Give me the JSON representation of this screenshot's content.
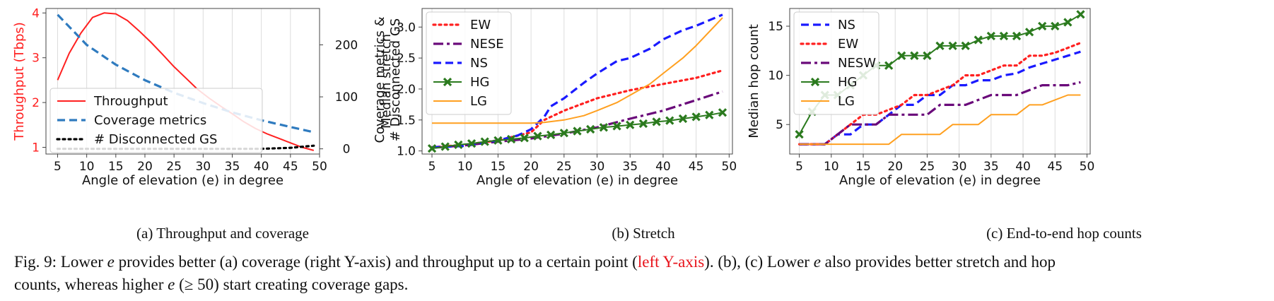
{
  "colors": {
    "red": "#ff2020",
    "steel_blue": "#2f7bbf",
    "blue": "#1a1aff",
    "purple": "#6a0a7a",
    "green": "#2b7a1e",
    "orange": "#ffa020",
    "black": "#000000",
    "left_axis_red": "#ff2020"
  },
  "chart_data": [
    {
      "id": "a",
      "type": "line",
      "xlabel": "Angle of elevation (e) in degree",
      "ylabel": "Throughput (Tbps)",
      "y2label_line1": "Coverage metrics &",
      "y2label_line2": "# Disconnected GS",
      "xlim": [
        3,
        50
      ],
      "ylim": [
        0.85,
        4.1
      ],
      "y2lim": [
        -10,
        270
      ],
      "xticks": [
        5,
        10,
        15,
        20,
        25,
        30,
        35,
        40,
        45,
        50
      ],
      "yticks": [
        1,
        2,
        3,
        4
      ],
      "y2ticks": [
        0,
        100,
        200
      ],
      "grid": "vertical",
      "legend_position": "lower-left",
      "series": [
        {
          "name": "Throughput",
          "axis": "left",
          "style": "solid",
          "color": "#ff2020",
          "x": [
            5,
            7,
            9,
            11,
            13,
            15,
            17,
            19,
            21,
            23,
            25,
            27,
            29,
            31,
            33,
            35,
            37,
            39,
            41,
            43,
            45,
            47,
            49
          ],
          "y": [
            2.5,
            3.1,
            3.55,
            3.9,
            4.0,
            3.98,
            3.83,
            3.6,
            3.35,
            3.08,
            2.8,
            2.55,
            2.3,
            2.1,
            1.92,
            1.75,
            1.57,
            1.42,
            1.3,
            1.2,
            1.1,
            1.0,
            0.93
          ]
        },
        {
          "name": "Coverage metrics",
          "axis": "right",
          "style": "dashed",
          "color": "#2f7bbf",
          "x": [
            5,
            10,
            15,
            20,
            25,
            30,
            35,
            40,
            45,
            49
          ],
          "y": [
            258,
            200,
            162,
            132,
            108,
            88,
            70,
            55,
            42,
            32
          ]
        },
        {
          "name": "# Disconnected GS",
          "axis": "right",
          "style": "dotted",
          "color": "#000000",
          "x": [
            5,
            10,
            15,
            20,
            25,
            30,
            35,
            40,
            45,
            49
          ],
          "y": [
            0,
            0,
            0,
            0,
            0,
            0,
            0,
            0,
            2,
            6
          ]
        }
      ],
      "subcaption": "(a) Throughput and coverage"
    },
    {
      "id": "b",
      "type": "line",
      "xlabel": "Angle of elevation (e) in degree",
      "ylabel": "Median stretch",
      "xlim": [
        3.5,
        50.5
      ],
      "ylim": [
        0.95,
        3.3
      ],
      "xticks": [
        5,
        10,
        15,
        20,
        25,
        30,
        35,
        40,
        45,
        50
      ],
      "yticks": [
        1.0,
        1.5,
        2.0,
        2.5,
        3.0
      ],
      "ytick_labels": [
        "1.0",
        "1.5",
        "2.0",
        "2.5",
        "3.0"
      ],
      "grid": "vertical",
      "legend_position": "upper-left",
      "series": [
        {
          "name": "EW",
          "style": "dotted",
          "color": "#ff2020",
          "x": [
            5,
            10,
            15,
            20,
            22,
            25,
            30,
            35,
            40,
            45,
            49
          ],
          "y": [
            1.06,
            1.1,
            1.17,
            1.3,
            1.5,
            1.65,
            1.85,
            1.98,
            2.08,
            2.18,
            2.3
          ]
        },
        {
          "name": "NESE",
          "style": "dashdot",
          "color": "#6a0a7a",
          "x": [
            5,
            10,
            15,
            20,
            25,
            30,
            35,
            40,
            45,
            49
          ],
          "y": [
            1.05,
            1.09,
            1.15,
            1.2,
            1.28,
            1.38,
            1.52,
            1.65,
            1.82,
            1.96
          ]
        },
        {
          "name": "NS",
          "style": "dashed",
          "color": "#1a1aff",
          "x": [
            5,
            10,
            15,
            18,
            20,
            22,
            23,
            25,
            28,
            30,
            33,
            35,
            38,
            40,
            43,
            45,
            49
          ],
          "y": [
            1.06,
            1.08,
            1.17,
            1.25,
            1.35,
            1.55,
            1.72,
            1.85,
            2.1,
            2.25,
            2.45,
            2.5,
            2.65,
            2.8,
            2.95,
            3.02,
            3.2
          ]
        },
        {
          "name": "HG",
          "style": "solid",
          "color": "#2b7a1e",
          "marker": "x",
          "x": [
            5,
            7,
            9,
            11,
            13,
            15,
            17,
            19,
            21,
            23,
            25,
            27,
            29,
            31,
            33,
            35,
            37,
            39,
            41,
            43,
            45,
            47,
            49
          ],
          "y": [
            1.04,
            1.07,
            1.1,
            1.12,
            1.15,
            1.17,
            1.19,
            1.21,
            1.24,
            1.26,
            1.29,
            1.32,
            1.35,
            1.38,
            1.4,
            1.42,
            1.44,
            1.47,
            1.49,
            1.52,
            1.55,
            1.58,
            1.62
          ]
        },
        {
          "name": "LG",
          "style": "solid",
          "color": "#ffa020",
          "x": [
            5,
            10,
            15,
            20,
            22,
            25,
            28,
            30,
            33,
            35,
            38,
            40,
            43,
            45,
            49
          ],
          "y": [
            1.45,
            1.45,
            1.45,
            1.45,
            1.46,
            1.5,
            1.57,
            1.65,
            1.78,
            1.9,
            2.08,
            2.25,
            2.5,
            2.7,
            3.15
          ]
        }
      ],
      "subcaption": "(b) Stretch"
    },
    {
      "id": "c",
      "type": "line",
      "xlabel": "Angle of elevation (e) in degree",
      "ylabel": "Median hop count",
      "xlim": [
        3.5,
        50.5
      ],
      "ylim": [
        2,
        16.8
      ],
      "xticks": [
        5,
        10,
        15,
        20,
        25,
        30,
        35,
        40,
        45,
        50
      ],
      "yticks": [
        5,
        10,
        15
      ],
      "grid": "vertical",
      "legend_position": "upper-left",
      "series": [
        {
          "name": "NS",
          "style": "dashed",
          "color": "#1a1aff",
          "x": [
            5,
            9,
            11,
            13,
            15,
            17,
            19,
            21,
            23,
            25,
            27,
            29,
            31,
            33,
            35,
            37,
            39,
            41,
            43,
            45,
            47,
            49
          ],
          "y": [
            3,
            3,
            4,
            4,
            5,
            5,
            6,
            7,
            7,
            8,
            8,
            9,
            9,
            9.5,
            9.5,
            10,
            10.2,
            10.8,
            11.2,
            11.6,
            12,
            12.4
          ]
        },
        {
          "name": "EW",
          "style": "dotted",
          "color": "#ff2020",
          "x": [
            5,
            9,
            11,
            13,
            15,
            17,
            19,
            21,
            23,
            25,
            27,
            29,
            31,
            33,
            35,
            37,
            39,
            41,
            43,
            45,
            47,
            49
          ],
          "y": [
            3,
            3,
            4,
            5,
            6,
            6,
            6.5,
            7,
            8,
            8,
            8.5,
            9,
            10,
            10,
            10.5,
            11,
            11,
            12,
            12,
            12.3,
            12.8,
            13.3
          ]
        },
        {
          "name": "NESW",
          "style": "dashdot",
          "color": "#6a0a7a",
          "x": [
            5,
            9,
            11,
            13,
            15,
            17,
            19,
            21,
            23,
            25,
            27,
            29,
            31,
            33,
            35,
            37,
            39,
            41,
            43,
            45,
            47,
            49
          ],
          "y": [
            3,
            3,
            4,
            5,
            5,
            5,
            6,
            6,
            6,
            6,
            7,
            7,
            7,
            7.5,
            8,
            8,
            8,
            8.5,
            9,
            9,
            9,
            9.3
          ]
        },
        {
          "name": "HG",
          "style": "solid",
          "color": "#2b7a1e",
          "marker": "x",
          "x": [
            5,
            7,
            9,
            11,
            13,
            15,
            17,
            19,
            21,
            23,
            25,
            27,
            29,
            31,
            33,
            35,
            37,
            39,
            41,
            43,
            45,
            47,
            49
          ],
          "y": [
            4,
            6.3,
            8,
            8,
            9,
            10,
            11,
            11,
            12,
            12,
            12,
            13,
            13,
            13,
            13.6,
            14,
            14,
            14,
            14.4,
            15,
            15,
            15.4,
            16.2
          ]
        },
        {
          "name": "LG",
          "style": "solid",
          "color": "#ffa020",
          "x": [
            5,
            9,
            11,
            13,
            15,
            17,
            19,
            21,
            23,
            25,
            27,
            29,
            31,
            33,
            35,
            37,
            39,
            41,
            43,
            45,
            47,
            49
          ],
          "y": [
            3,
            3,
            3,
            3,
            3,
            3,
            3,
            4,
            4,
            4,
            4,
            5,
            5,
            5,
            6,
            6,
            6,
            7,
            7,
            7.5,
            8,
            8
          ]
        }
      ],
      "subcaption": "(c) End-to-end hop counts"
    }
  ],
  "caption": {
    "part1": "Fig. 9: Lower ",
    "e1": "e",
    "part2": " provides better (a) coverage (right Y-axis) and throughput up to a certain point (",
    "red_text": "left Y-axis",
    "part3": "). (b), (c) Lower ",
    "e2": "e",
    "part4": " also provides better stretch and hop",
    "line2a": "counts, whereas higher ",
    "e3": "e",
    "line2b": " (≥ 50) start creating coverage gaps."
  }
}
